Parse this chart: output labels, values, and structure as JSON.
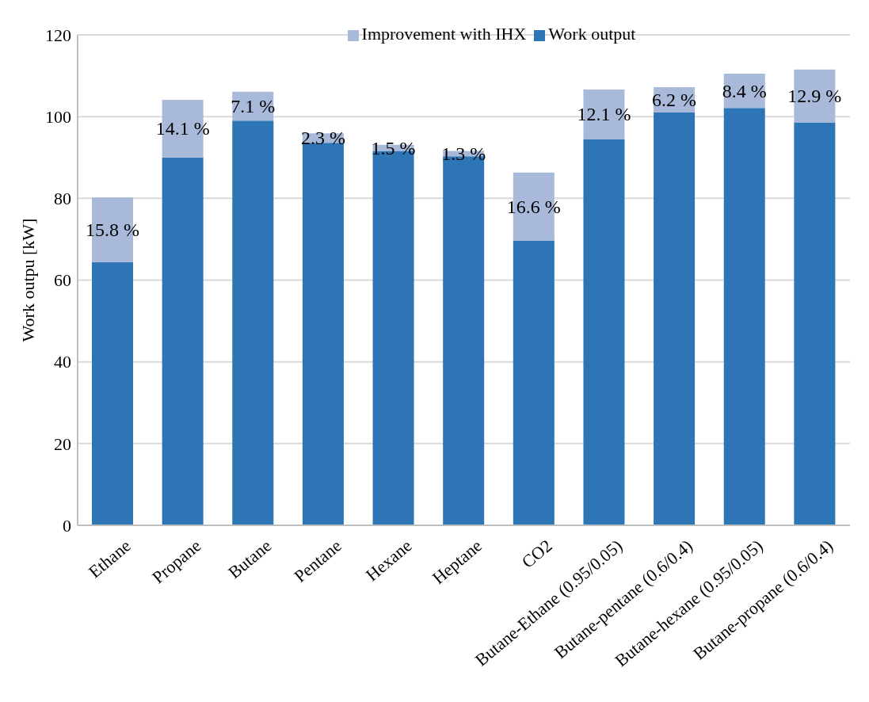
{
  "chart_data": {
    "type": "bar",
    "stacked": true,
    "ylabel": "Work outpu [kW]",
    "categories": [
      "Ethane",
      "Propane",
      "Butane",
      "Pentane",
      "Hexane",
      "Heptane",
      "CO2",
      "Butane-Ethane (0.95/0.05)",
      "Butane-pentane (0.6/0.4)",
      "Butane-hexane (0.95/0.05)",
      "Butane-propane (0.6/0.4)"
    ],
    "series": [
      {
        "name": "Work output",
        "color": "#2e75b6",
        "values": [
          64.4,
          90.0,
          99.0,
          93.6,
          91.6,
          90.3,
          69.7,
          94.5,
          101.0,
          102.1,
          98.6
        ]
      },
      {
        "name": "Improvement with IHX",
        "color": "#a9b9d9",
        "values": [
          15.8,
          14.1,
          7.1,
          2.3,
          1.5,
          1.3,
          16.6,
          12.1,
          6.2,
          8.4,
          12.9
        ],
        "value_labels": [
          "15.8 %",
          "14.1 %",
          "7.1 %",
          "2.3 %",
          "1.5 %",
          "1.3 %",
          "16.6 %",
          "12.1 %",
          "6.2 %",
          "8.4 %",
          "12.9 %"
        ]
      }
    ],
    "ylim": [
      0,
      120
    ],
    "yticks": [
      0,
      20,
      40,
      60,
      80,
      100,
      120
    ],
    "grid": "y",
    "legend": "top"
  }
}
